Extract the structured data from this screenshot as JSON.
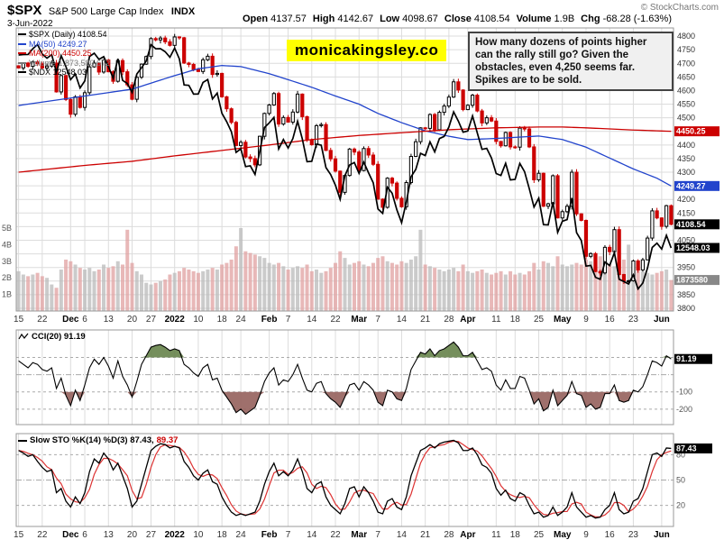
{
  "header": {
    "symbol": "$SPX",
    "name": "S&P 500 Large Cap Index",
    "exchange": "INDX",
    "date": "3-Jun-2022",
    "copyright": "© StockCharts.com",
    "quote": [
      {
        "label": "Open",
        "value": "4137.57"
      },
      {
        "label": "High",
        "value": "4142.67"
      },
      {
        "label": "Low",
        "value": "4098.67"
      },
      {
        "label": "Close",
        "value": "4108.54"
      },
      {
        "label": "Volume",
        "value": "1.9B"
      },
      {
        "label": "Chg",
        "value": "-68.28 (-1.63%)"
      }
    ]
  },
  "watermark": "monicakingsley.co",
  "annotation": "How many dozens of points higher can the rally still go? Given the obstacles, even 4,250 seems far. Spikes are to be sold.",
  "legend": {
    "rows": [
      {
        "label": "$SPX (Daily) 4108.54",
        "color": "#000000"
      },
      {
        "label": "MA(50) 4249.27",
        "color": "#2244cc"
      },
      {
        "label": "MA(200) 4450.25",
        "color": "#cc0000"
      },
      {
        "label": "Volume 1,873,580,672",
        "color": "#777777"
      },
      {
        "label": "$NDX 12548.03",
        "color": "#000000"
      }
    ],
    "cci_label": "CCI(20) 91.19",
    "stoch_label": "Slow STO %K(14) %D(3) 87.43,",
    "stoch_d": "89.37"
  },
  "chart_data": [
    {
      "type": "candlestick",
      "title": "$SPX (Daily)",
      "overlays": [
        "MA(50)",
        "MA(200)",
        "$NDX",
        "Volume"
      ],
      "ylim": [
        3790,
        4830
      ],
      "y_grid_range": [
        3800,
        4800
      ],
      "y_grid_step": 50,
      "unlabeled_gridlines": [
        4450,
        4250,
        4100
      ],
      "x_ticks": [
        [
          "15",
          0
        ],
        [
          "22",
          5
        ],
        [
          "Dec",
          11
        ],
        [
          "6",
          14
        ],
        [
          "13",
          19
        ],
        [
          "20",
          24
        ],
        [
          "27",
          28
        ],
        [
          "2022",
          33
        ],
        [
          "10",
          38
        ],
        [
          "18",
          43
        ],
        [
          "24",
          47
        ],
        [
          "Feb",
          53
        ],
        [
          "7",
          57
        ],
        [
          "14",
          62
        ],
        [
          "22",
          67
        ],
        [
          "Mar",
          72
        ],
        [
          "7",
          76
        ],
        [
          "14",
          81
        ],
        [
          "21",
          86
        ],
        [
          "28",
          91
        ],
        [
          "Apr",
          95
        ],
        [
          "11",
          101
        ],
        [
          "18",
          105
        ],
        [
          "25",
          110
        ],
        [
          "May",
          115
        ],
        [
          "9",
          120
        ],
        [
          "16",
          125
        ],
        [
          "23",
          130
        ],
        [
          "Jun",
          136
        ]
      ],
      "bold_ticks": [
        "Dec",
        "2022",
        "Feb",
        "Mar",
        "Apr",
        "May",
        "Jun"
      ],
      "close": [
        4683,
        4701,
        4689,
        4705,
        4698,
        4683,
        4690,
        4701,
        4595,
        4655,
        4567,
        4513,
        4577,
        4538,
        4592,
        4687,
        4701,
        4668,
        4712,
        4669,
        4634,
        4710,
        4669,
        4621,
        4568,
        4649,
        4697,
        4725,
        4791,
        4786,
        4793,
        4779,
        4766,
        4797,
        4794,
        4701,
        4696,
        4677,
        4670,
        4713,
        4726,
        4659,
        4663,
        4577,
        4533,
        4483,
        4398,
        4410,
        4356,
        4350,
        4327,
        4432,
        4516,
        4547,
        4589,
        4477,
        4501,
        4484,
        4521,
        4587,
        4504,
        4419,
        4401,
        4471,
        4475,
        4380,
        4349,
        4304,
        4226,
        4288,
        4385,
        4374,
        4306,
        4387,
        4363,
        4329,
        4201,
        4171,
        4278,
        4260,
        4204,
        4173,
        4262,
        4358,
        4412,
        4463,
        4461,
        4512,
        4456,
        4520,
        4543,
        4576,
        4632,
        4602,
        4530,
        4546,
        4583,
        4525,
        4481,
        4500,
        4488,
        4413,
        4397,
        4446,
        4393,
        4392,
        4462,
        4459,
        4393,
        4272,
        4296,
        4175,
        4184,
        4287,
        4132,
        4155,
        4175,
        4300,
        4147,
        4123,
        3991,
        4001,
        3935,
        3930,
        4024,
        4008,
        4089,
        3924,
        3901,
        3901,
        3974,
        3941,
        3978,
        4058,
        4158,
        4132,
        4101,
        4177,
        4108.54
      ],
      "ma50_points": [
        [
          0,
          4545
        ],
        [
          10,
          4570
        ],
        [
          14,
          4580
        ],
        [
          24,
          4605
        ],
        [
          33,
          4655
        ],
        [
          38,
          4680
        ],
        [
          43,
          4692
        ],
        [
          47,
          4688
        ],
        [
          53,
          4662
        ],
        [
          57,
          4640
        ],
        [
          62,
          4612
        ],
        [
          67,
          4580
        ],
        [
          72,
          4550
        ],
        [
          76,
          4516
        ],
        [
          81,
          4482
        ],
        [
          86,
          4452
        ],
        [
          91,
          4432
        ],
        [
          95,
          4420
        ],
        [
          101,
          4424
        ],
        [
          105,
          4428
        ],
        [
          110,
          4433
        ],
        [
          115,
          4420
        ],
        [
          120,
          4392
        ],
        [
          125,
          4352
        ],
        [
          130,
          4312
        ],
        [
          135,
          4278
        ],
        [
          138,
          4249.27
        ]
      ],
      "ma200_points": [
        [
          0,
          4300
        ],
        [
          14,
          4325
        ],
        [
          24,
          4340
        ],
        [
          33,
          4360
        ],
        [
          43,
          4380
        ],
        [
          53,
          4400
        ],
        [
          62,
          4420
        ],
        [
          72,
          4435
        ],
        [
          81,
          4445
        ],
        [
          91,
          4456
        ],
        [
          101,
          4463
        ],
        [
          110,
          4466
        ],
        [
          115,
          4466
        ],
        [
          120,
          4463
        ],
        [
          125,
          4459
        ],
        [
          130,
          4455
        ],
        [
          135,
          4452
        ],
        [
          138,
          4450.25
        ]
      ],
      "ndx": {
        "ylim": [
          11300,
          16900
        ],
        "last_label": "12548.03",
        "values": [
          16365,
          16373,
          16375,
          16488,
          16573,
          16384,
          16301,
          16372,
          16025,
          16354,
          16136,
          15877,
          15988,
          15712,
          15852,
          16335,
          16400,
          16278,
          16332,
          16135,
          15906,
          16290,
          15863,
          15801,
          15625,
          15988,
          16114,
          16246,
          16567,
          16489,
          16491,
          16430,
          16320,
          16502,
          16288,
          15772,
          15765,
          15592,
          15594,
          15822,
          15879,
          15496,
          15611,
          15211,
          15047,
          14847,
          14439,
          14510,
          14157,
          14173,
          14003,
          14454,
          14930,
          15022,
          15130,
          14506,
          14694,
          14524,
          14711,
          15056,
          14706,
          14254,
          14261,
          14603,
          14580,
          14138,
          13999,
          13790,
          13509,
          13974,
          14190,
          14238,
          14023,
          14245,
          14035,
          13837,
          13319,
          13232,
          13749,
          13630,
          13301,
          13048,
          13458,
          13956,
          14102,
          14420,
          14376,
          14647,
          14447,
          14712,
          14754,
          14940,
          15239,
          15057,
          14838,
          14861,
          15160,
          14825,
          14498,
          14518,
          14328,
          14020,
          13982,
          14221,
          13893,
          13905,
          14220,
          14057,
          13720,
          13357,
          13533,
          13009,
          13004,
          13456,
          12855,
          13076,
          13109,
          13536,
          12851,
          12694,
          12188,
          12202,
          11967,
          11928,
          12270,
          12199,
          12455,
          11928,
          11883,
          11835,
          12016,
          11737,
          11853,
          12149,
          12558,
          12642,
          12525,
          12797,
          12548.03
        ]
      },
      "volume": {
        "axis": [
          "5B",
          "4B",
          "3B",
          "2B",
          "1B"
        ],
        "last_label": "1873580",
        "billions": [
          2.4,
          2.2,
          2.1,
          2.2,
          2.3,
          2.1,
          2.0,
          1.6,
          1.4,
          2.5,
          3.1,
          3.0,
          2.8,
          2.6,
          2.5,
          2.6,
          2.4,
          2.5,
          2.8,
          2.6,
          2.7,
          3.0,
          2.8,
          4.9,
          2.9,
          2.4,
          2.2,
          1.7,
          1.6,
          1.7,
          1.8,
          1.9,
          2.2,
          2.3,
          2.4,
          2.6,
          2.5,
          2.4,
          2.3,
          2.4,
          2.5,
          2.6,
          2.5,
          2.8,
          2.9,
          3.1,
          3.9,
          5.0,
          3.6,
          3.5,
          3.4,
          3.3,
          3.2,
          2.9,
          2.8,
          2.9,
          2.7,
          2.5,
          2.6,
          2.7,
          2.6,
          2.8,
          2.4,
          2.5,
          2.3,
          2.4,
          2.6,
          2.9,
          3.6,
          3.2,
          2.8,
          2.9,
          3.0,
          2.8,
          2.7,
          2.9,
          3.2,
          3.3,
          3.0,
          2.9,
          2.8,
          3.0,
          2.9,
          3.1,
          3.3,
          4.9,
          2.8,
          2.7,
          2.6,
          2.5,
          2.4,
          2.5,
          2.6,
          2.4,
          2.8,
          2.4,
          2.3,
          2.4,
          2.5,
          2.3,
          2.2,
          2.3,
          2.4,
          2.2,
          2.4,
          2.2,
          2.3,
          2.2,
          2.4,
          2.9,
          2.5,
          3.0,
          2.9,
          2.7,
          3.3,
          2.8,
          2.7,
          2.8,
          2.9,
          2.8,
          3.1,
          3.0,
          3.2,
          3.3,
          2.9,
          2.8,
          2.7,
          3.0,
          3.1,
          4.0,
          2.5,
          2.6,
          2.4,
          2.3,
          2.2,
          2.3,
          2.4,
          2.5,
          1.87
        ]
      },
      "price_boxes": [
        {
          "value": 4450.25,
          "label": "4450.25",
          "color": "#cc0000"
        },
        {
          "value": 4249.27,
          "label": "4249.27",
          "color": "#2244cc"
        },
        {
          "value": 4108.54,
          "label": "4108.54",
          "color": "#000000"
        }
      ],
      "colors": {
        "up": "#ffffff",
        "up_border": "#000000",
        "down": "#cc0000",
        "ma50": "#2244cc",
        "ma200": "#cc0000",
        "ndx": "#000000",
        "vol_up": "#b9b9b9",
        "vol_down": "#e0a0a0"
      }
    },
    {
      "type": "line",
      "title": "CCI(20)",
      "last": 91.19,
      "last_label": "91.19",
      "ylim": [
        -290,
        260
      ],
      "gridlines": [
        {
          "v": 100,
          "style": "dashed"
        },
        {
          "v": 0,
          "style": "dashdot"
        },
        {
          "v": -100,
          "style": "dashed"
        },
        {
          "v": -200,
          "style": "dashed"
        }
      ],
      "right_labels": [
        -100,
        -200
      ],
      "band_upper": 100,
      "band_lower": -100,
      "fill_upper": "#66834a",
      "fill_lower": "#95605c",
      "values": [
        80,
        60,
        40,
        70,
        60,
        30,
        20,
        40,
        -80,
        -20,
        -120,
        -180,
        -90,
        -150,
        -60,
        40,
        90,
        60,
        100,
        50,
        -20,
        80,
        -10,
        -60,
        -130,
        -40,
        60,
        110,
        160,
        170,
        175,
        160,
        140,
        150,
        140,
        60,
        40,
        10,
        -10,
        40,
        60,
        -30,
        -20,
        -90,
        -130,
        -170,
        -220,
        -200,
        -230,
        -210,
        -190,
        -120,
        -40,
        10,
        40,
        -60,
        -30,
        -40,
        0,
        60,
        -20,
        -90,
        -100,
        -50,
        -40,
        -110,
        -140,
        -160,
        -190,
        -130,
        -60,
        -50,
        -90,
        -40,
        -60,
        -90,
        -160,
        -180,
        -90,
        -100,
        -140,
        -150,
        -80,
        30,
        80,
        130,
        120,
        150,
        110,
        140,
        150,
        170,
        190,
        160,
        110,
        110,
        130,
        80,
        30,
        40,
        20,
        -60,
        -90,
        -30,
        -80,
        -80,
        -10,
        -20,
        -90,
        -170,
        -140,
        -210,
        -190,
        -90,
        -180,
        -150,
        -120,
        -40,
        -110,
        -120,
        -190,
        -170,
        -200,
        -190,
        -110,
        -110,
        -60,
        -150,
        -160,
        -150,
        -90,
        -100,
        -70,
        0,
        80,
        70,
        50,
        110,
        91.19
      ]
    },
    {
      "type": "line",
      "title": "Slow STO %K(14) %D(3)",
      "k_last": 87.43,
      "d_last": 89.37,
      "last_label": "87.43",
      "ylim": [
        -5,
        105
      ],
      "gridlines": [
        80,
        50,
        20
      ],
      "d_color": "#dd3333",
      "values_k": [
        85,
        82,
        78,
        80,
        72,
        65,
        60,
        62,
        35,
        40,
        25,
        18,
        30,
        22,
        35,
        60,
        75,
        70,
        82,
        75,
        62,
        70,
        55,
        40,
        18,
        25,
        45,
        65,
        85,
        90,
        93,
        92,
        88,
        90,
        88,
        72,
        65,
        55,
        50,
        58,
        62,
        48,
        45,
        30,
        20,
        12,
        8,
        10,
        8,
        10,
        12,
        25,
        45,
        60,
        70,
        55,
        60,
        55,
        62,
        75,
        60,
        40,
        35,
        45,
        48,
        30,
        20,
        15,
        10,
        22,
        40,
        42,
        30,
        42,
        35,
        25,
        12,
        10,
        25,
        28,
        18,
        15,
        30,
        55,
        70,
        85,
        88,
        92,
        88,
        93,
        95,
        96,
        97,
        94,
        85,
        85,
        88,
        80,
        68,
        65,
        58,
        40,
        32,
        38,
        28,
        25,
        35,
        32,
        20,
        10,
        12,
        6,
        8,
        18,
        8,
        12,
        18,
        35,
        18,
        12,
        6,
        8,
        5,
        6,
        15,
        20,
        35,
        15,
        10,
        12,
        25,
        28,
        40,
        60,
        80,
        82,
        78,
        88,
        87.43
      ]
    }
  ]
}
